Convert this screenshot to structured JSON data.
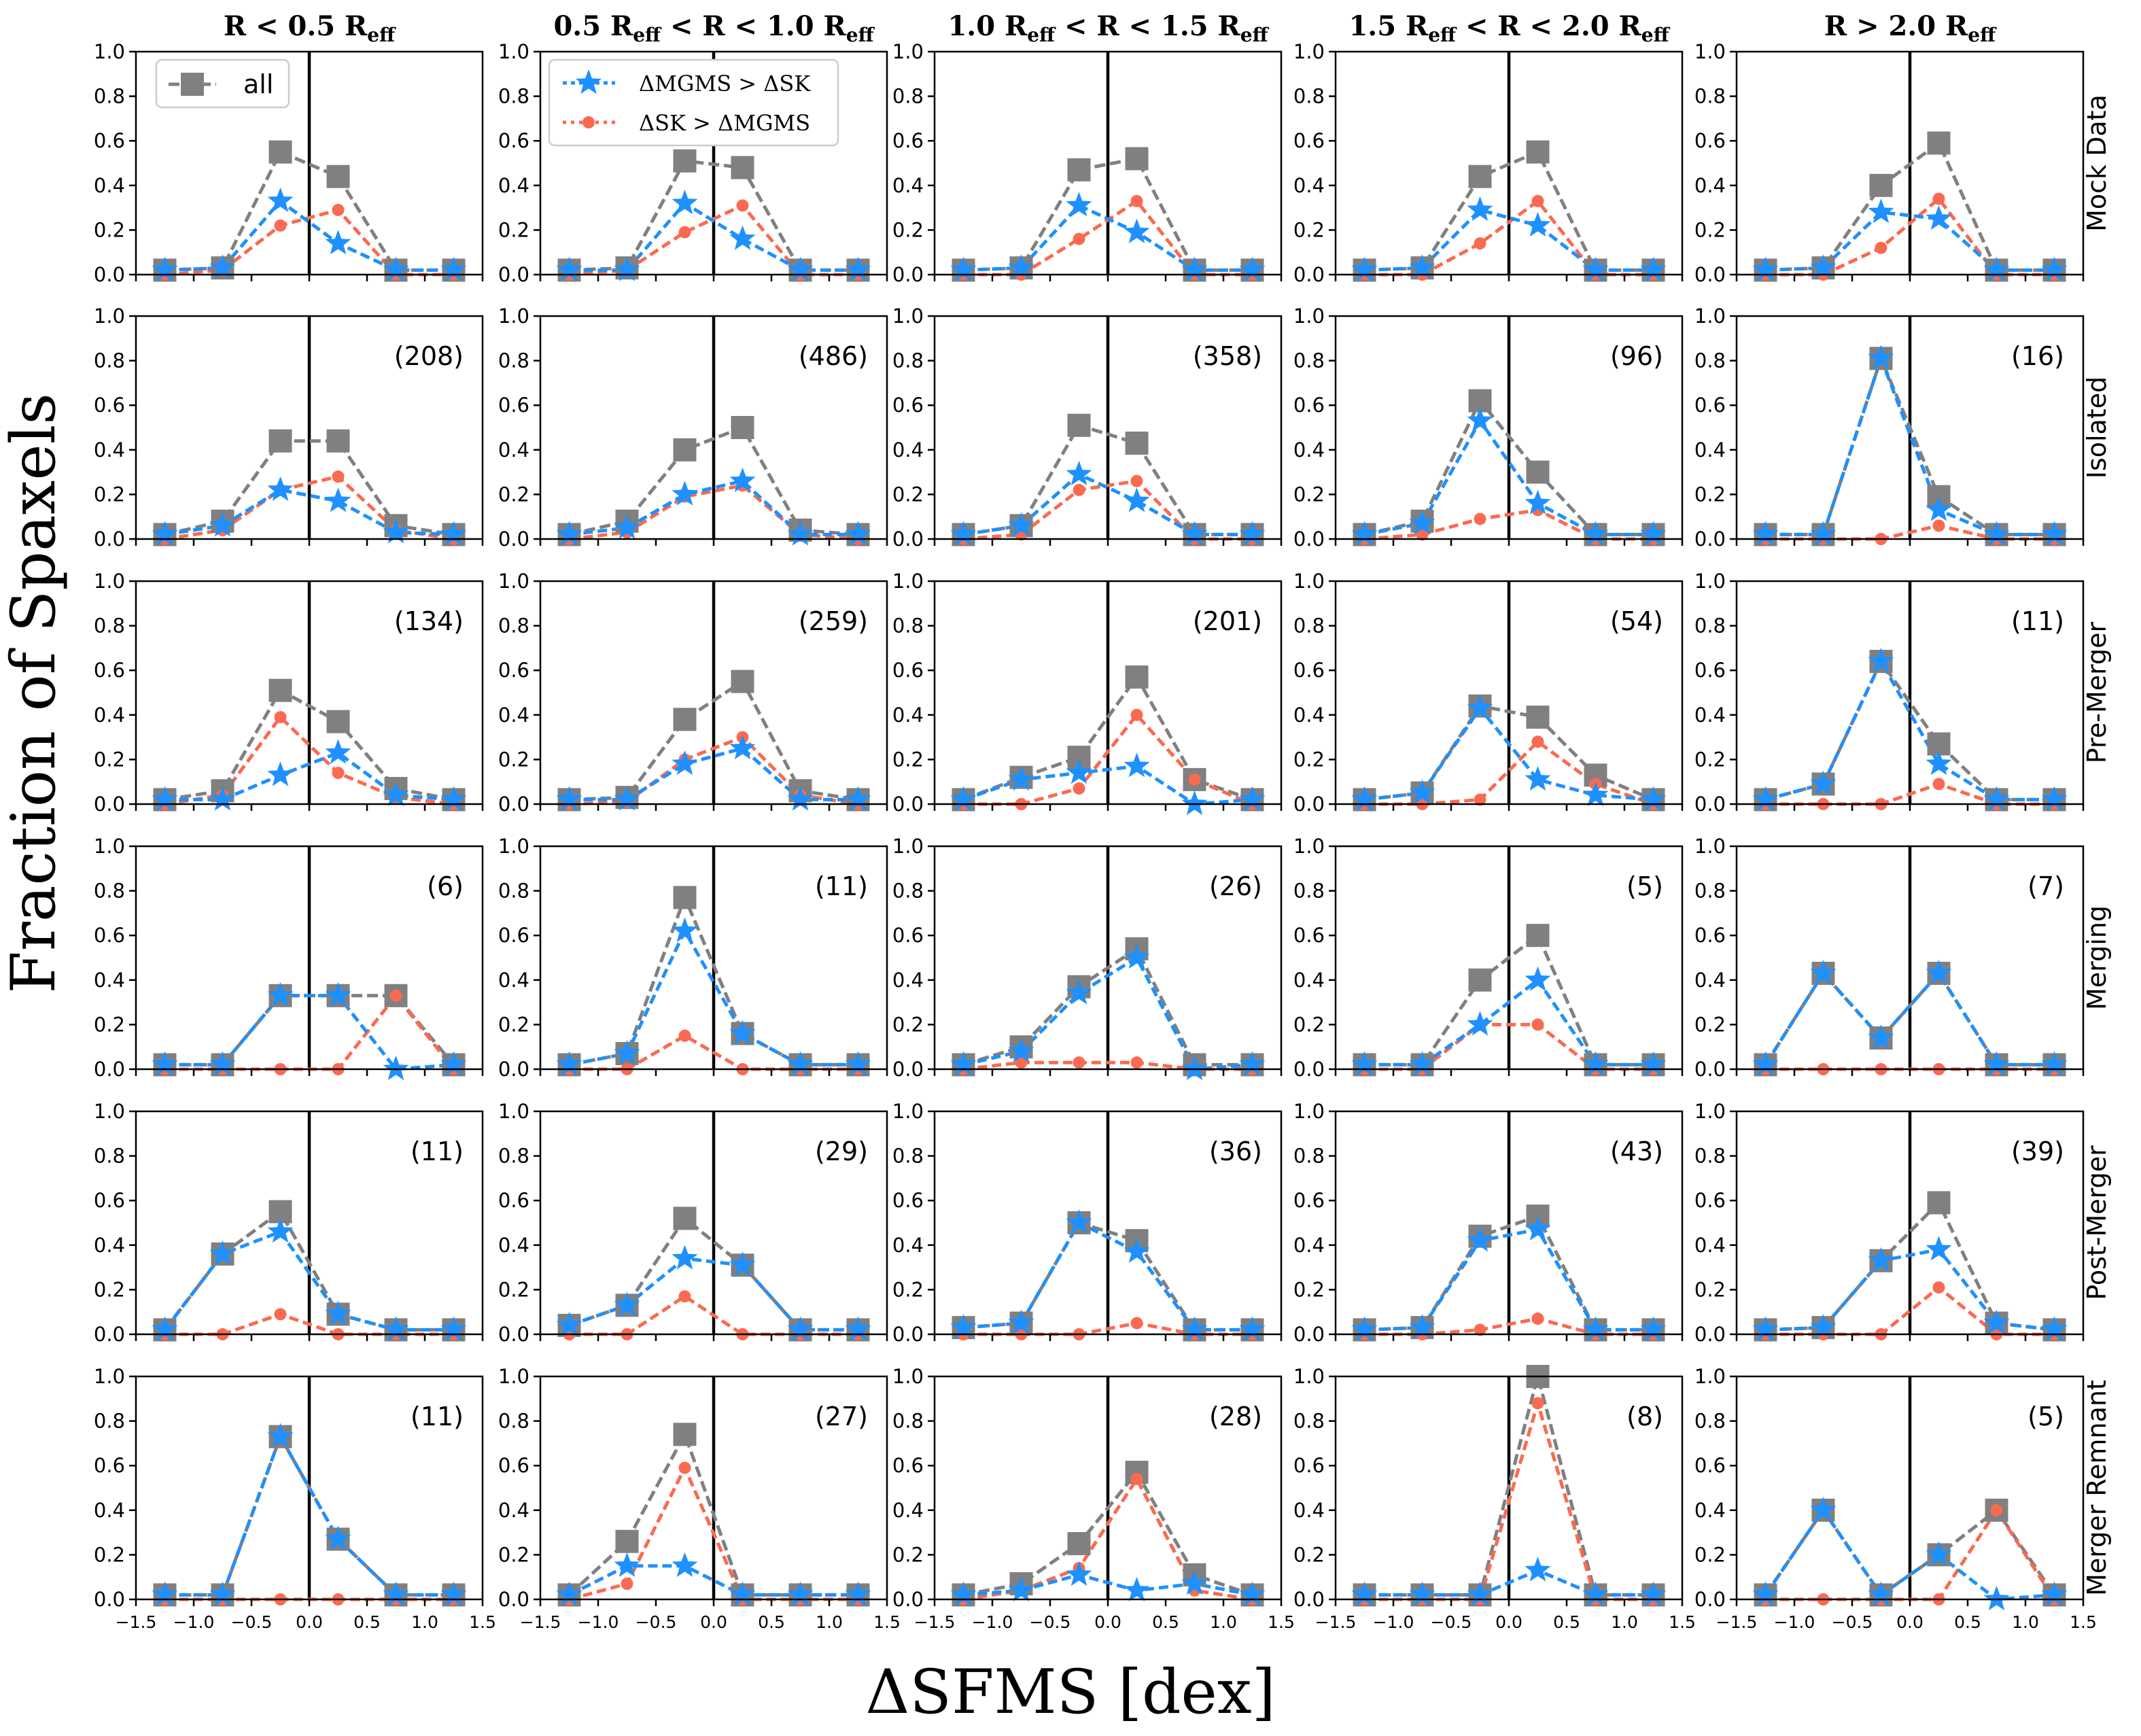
{
  "figure": {
    "ylabel": "Fraction of Spaxels",
    "xlabel": "ΔSFMS [dex]",
    "columns": [
      {
        "pre": "",
        "mid": "R < 0.5 R",
        "sub": "eff",
        "post": ""
      },
      {
        "pre": "0.5 R",
        "presub": "eff",
        "mid": " < R < 1.0 R",
        "sub": "eff",
        "post": ""
      },
      {
        "pre": "1.0 R",
        "presub": "eff",
        "mid": " < R < 1.5 R",
        "sub": "eff",
        "post": ""
      },
      {
        "pre": "1.5 R",
        "presub": "eff",
        "mid": " < R < 2.0 R",
        "sub": "eff",
        "post": ""
      },
      {
        "pre": "",
        "mid": "R > 2.0 R",
        "sub": "eff",
        "post": ""
      }
    ],
    "column_titles": [
      "R < 0.5 R_eff",
      "0.5 R_eff < R < 1.0 R_eff",
      "1.0 R_eff < R < 1.5 R_eff",
      "1.5 R_eff < R < 2.0 R_eff",
      "R > 2.0 R_eff"
    ],
    "rows": [
      "Mock Data",
      "Isolated",
      "Pre-Merger",
      "Merging",
      "Post-Merger",
      "Merger Remnant"
    ],
    "legend_all": "all",
    "legend_mgms": "ΔMGMS > ΔSK",
    "legend_sk": "ΔSK > ΔMGMS",
    "colors": {
      "all": "#808080",
      "mgms": "#1e90ff",
      "sk": "#fa6a50",
      "vline": "#000000"
    }
  },
  "chart_data": {
    "type": "line",
    "x": [
      -1.25,
      -0.75,
      -0.25,
      0.25,
      0.75,
      1.25
    ],
    "xlim": [
      -1.5,
      1.5
    ],
    "ylim": [
      0.0,
      1.0
    ],
    "xticks": [
      "−1.5",
      "−1.0",
      "−0.5",
      "0.0",
      "0.5",
      "1.0",
      "1.5"
    ],
    "yticks": [
      "0.0",
      "0.2",
      "0.4",
      "0.6",
      "0.8",
      "1.0"
    ],
    "vline_x": 0.0,
    "panels": [
      [
        {
          "count": "",
          "all": [
            0.02,
            0.03,
            0.55,
            0.44,
            0.02,
            0.02
          ],
          "mgms": [
            0.02,
            0.03,
            0.33,
            0.14,
            0.02,
            0.02
          ],
          "sk": [
            0.0,
            0.02,
            0.22,
            0.29,
            0.0,
            0.0
          ]
        },
        {
          "count": "",
          "all": [
            0.02,
            0.03,
            0.51,
            0.48,
            0.02,
            0.02
          ],
          "mgms": [
            0.02,
            0.02,
            0.32,
            0.16,
            0.02,
            0.02
          ],
          "sk": [
            0.0,
            0.02,
            0.19,
            0.31,
            0.0,
            0.0
          ]
        },
        {
          "count": "",
          "all": [
            0.02,
            0.03,
            0.47,
            0.52,
            0.02,
            0.02
          ],
          "mgms": [
            0.02,
            0.03,
            0.31,
            0.19,
            0.02,
            0.02
          ],
          "sk": [
            0.0,
            0.0,
            0.16,
            0.33,
            0.0,
            0.0
          ]
        },
        {
          "count": "",
          "all": [
            0.02,
            0.03,
            0.44,
            0.55,
            0.02,
            0.02
          ],
          "mgms": [
            0.02,
            0.03,
            0.29,
            0.22,
            0.02,
            0.02
          ],
          "sk": [
            0.0,
            0.0,
            0.14,
            0.33,
            0.0,
            0.0
          ]
        },
        {
          "count": "",
          "all": [
            0.02,
            0.03,
            0.4,
            0.59,
            0.02,
            0.02
          ],
          "mgms": [
            0.02,
            0.03,
            0.28,
            0.25,
            0.02,
            0.02
          ],
          "sk": [
            0.0,
            0.0,
            0.12,
            0.34,
            0.0,
            0.0
          ]
        }
      ],
      [
        {
          "count": "(208)",
          "all": [
            0.02,
            0.08,
            0.44,
            0.44,
            0.06,
            0.02
          ],
          "mgms": [
            0.02,
            0.06,
            0.22,
            0.17,
            0.03,
            0.02
          ],
          "sk": [
            0.0,
            0.04,
            0.22,
            0.28,
            0.04,
            0.0
          ]
        },
        {
          "count": "(486)",
          "all": [
            0.02,
            0.08,
            0.4,
            0.5,
            0.04,
            0.02
          ],
          "mgms": [
            0.02,
            0.05,
            0.2,
            0.26,
            0.02,
            0.02
          ],
          "sk": [
            0.0,
            0.03,
            0.19,
            0.24,
            0.02,
            0.0
          ]
        },
        {
          "count": "(358)",
          "all": [
            0.02,
            0.06,
            0.51,
            0.43,
            0.02,
            0.02
          ],
          "mgms": [
            0.02,
            0.06,
            0.29,
            0.17,
            0.02,
            0.02
          ],
          "sk": [
            0.0,
            0.02,
            0.22,
            0.26,
            0.0,
            0.0
          ]
        },
        {
          "count": "(96)",
          "all": [
            0.02,
            0.08,
            0.62,
            0.3,
            0.02,
            0.02
          ],
          "mgms": [
            0.02,
            0.07,
            0.53,
            0.16,
            0.02,
            0.02
          ],
          "sk": [
            0.0,
            0.02,
            0.09,
            0.13,
            0.0,
            0.0
          ]
        },
        {
          "count": "(16)",
          "all": [
            0.02,
            0.02,
            0.81,
            0.19,
            0.02,
            0.02
          ],
          "mgms": [
            0.02,
            0.02,
            0.81,
            0.13,
            0.02,
            0.02
          ],
          "sk": [
            0.0,
            0.0,
            0.0,
            0.06,
            0.0,
            0.0
          ]
        }
      ],
      [
        {
          "count": "(134)",
          "all": [
            0.02,
            0.06,
            0.51,
            0.37,
            0.07,
            0.02
          ],
          "mgms": [
            0.02,
            0.02,
            0.13,
            0.23,
            0.04,
            0.02
          ],
          "sk": [
            0.0,
            0.04,
            0.39,
            0.14,
            0.03,
            0.0
          ]
        },
        {
          "count": "(259)",
          "all": [
            0.02,
            0.03,
            0.38,
            0.55,
            0.06,
            0.02
          ],
          "mgms": [
            0.02,
            0.02,
            0.18,
            0.25,
            0.02,
            0.02
          ],
          "sk": [
            0.0,
            0.01,
            0.2,
            0.3,
            0.04,
            0.0
          ]
        },
        {
          "count": "(201)",
          "all": [
            0.02,
            0.12,
            0.21,
            0.57,
            0.11,
            0.02
          ],
          "mgms": [
            0.02,
            0.11,
            0.14,
            0.17,
            0.0,
            0.02
          ],
          "sk": [
            0.0,
            0.0,
            0.07,
            0.4,
            0.11,
            0.0
          ]
        },
        {
          "count": "(54)",
          "all": [
            0.02,
            0.05,
            0.44,
            0.39,
            0.13,
            0.02
          ],
          "mgms": [
            0.02,
            0.05,
            0.43,
            0.11,
            0.04,
            0.02
          ],
          "sk": [
            0.0,
            0.0,
            0.02,
            0.28,
            0.09,
            0.0
          ]
        },
        {
          "count": "(11)",
          "all": [
            0.02,
            0.09,
            0.64,
            0.27,
            0.02,
            0.02
          ],
          "mgms": [
            0.02,
            0.09,
            0.64,
            0.18,
            0.02,
            0.02
          ],
          "sk": [
            0.0,
            0.0,
            0.0,
            0.09,
            0.0,
            0.0
          ]
        }
      ],
      [
        {
          "count": "(6)",
          "all": [
            0.02,
            0.02,
            0.33,
            0.33,
            0.33,
            0.02
          ],
          "mgms": [
            0.02,
            0.02,
            0.33,
            0.33,
            0.0,
            0.02
          ],
          "sk": [
            0.0,
            0.0,
            0.0,
            0.0,
            0.33,
            0.0
          ]
        },
        {
          "count": "(11)",
          "all": [
            0.02,
            0.07,
            0.77,
            0.16,
            0.02,
            0.02
          ],
          "mgms": [
            0.02,
            0.07,
            0.62,
            0.16,
            0.02,
            0.02
          ],
          "sk": [
            0.0,
            0.0,
            0.15,
            0.0,
            0.0,
            0.0
          ]
        },
        {
          "count": "(26)",
          "all": [
            0.02,
            0.1,
            0.37,
            0.54,
            0.02,
            0.02
          ],
          "mgms": [
            0.02,
            0.08,
            0.34,
            0.5,
            0.0,
            0.02
          ],
          "sk": [
            0.0,
            0.03,
            0.03,
            0.03,
            0.0,
            0.0
          ]
        },
        {
          "count": "(5)",
          "all": [
            0.02,
            0.02,
            0.4,
            0.6,
            0.02,
            0.02
          ],
          "mgms": [
            0.02,
            0.02,
            0.2,
            0.4,
            0.02,
            0.02
          ],
          "sk": [
            0.0,
            0.0,
            0.2,
            0.2,
            0.0,
            0.0
          ]
        },
        {
          "count": "(7)",
          "all": [
            0.02,
            0.43,
            0.14,
            0.43,
            0.02,
            0.02
          ],
          "mgms": [
            0.02,
            0.43,
            0.14,
            0.43,
            0.02,
            0.02
          ],
          "sk": [
            0.0,
            0.0,
            0.0,
            0.0,
            0.0,
            0.0
          ]
        }
      ],
      [
        {
          "count": "(11)",
          "all": [
            0.02,
            0.36,
            0.55,
            0.09,
            0.02,
            0.02
          ],
          "mgms": [
            0.02,
            0.36,
            0.46,
            0.09,
            0.02,
            0.02
          ],
          "sk": [
            0.0,
            0.0,
            0.09,
            0.0,
            0.0,
            0.0
          ]
        },
        {
          "count": "(29)",
          "all": [
            0.04,
            0.13,
            0.52,
            0.31,
            0.02,
            0.02
          ],
          "mgms": [
            0.04,
            0.13,
            0.34,
            0.31,
            0.02,
            0.02
          ],
          "sk": [
            0.0,
            0.0,
            0.17,
            0.0,
            0.0,
            0.0
          ]
        },
        {
          "count": "(36)",
          "all": [
            0.03,
            0.05,
            0.5,
            0.42,
            0.02,
            0.02
          ],
          "mgms": [
            0.03,
            0.05,
            0.5,
            0.37,
            0.02,
            0.02
          ],
          "sk": [
            0.0,
            0.0,
            0.0,
            0.05,
            0.0,
            0.0
          ]
        },
        {
          "count": "(43)",
          "all": [
            0.02,
            0.03,
            0.44,
            0.53,
            0.02,
            0.02
          ],
          "mgms": [
            0.02,
            0.03,
            0.42,
            0.47,
            0.02,
            0.02
          ],
          "sk": [
            0.0,
            0.0,
            0.02,
            0.07,
            0.0,
            0.0
          ]
        },
        {
          "count": "(39)",
          "all": [
            0.02,
            0.03,
            0.33,
            0.59,
            0.05,
            0.02
          ],
          "mgms": [
            0.02,
            0.03,
            0.33,
            0.38,
            0.05,
            0.02
          ],
          "sk": [
            0.0,
            0.0,
            0.0,
            0.21,
            0.0,
            0.0
          ]
        }
      ],
      [
        {
          "count": "(11)",
          "all": [
            0.02,
            0.02,
            0.73,
            0.27,
            0.02,
            0.02
          ],
          "mgms": [
            0.02,
            0.02,
            0.73,
            0.27,
            0.02,
            0.02
          ],
          "sk": [
            0.0,
            0.0,
            0.0,
            0.0,
            0.0,
            0.0
          ]
        },
        {
          "count": "(27)",
          "all": [
            0.02,
            0.26,
            0.74,
            0.02,
            0.02,
            0.02
          ],
          "mgms": [
            0.02,
            0.15,
            0.15,
            0.02,
            0.02,
            0.02
          ],
          "sk": [
            0.0,
            0.07,
            0.59,
            0.0,
            0.0,
            0.0
          ]
        },
        {
          "count": "(28)",
          "all": [
            0.02,
            0.07,
            0.25,
            0.57,
            0.11,
            0.02
          ],
          "mgms": [
            0.02,
            0.04,
            0.11,
            0.04,
            0.07,
            0.02
          ],
          "sk": [
            0.0,
            0.04,
            0.14,
            0.54,
            0.04,
            0.0
          ]
        },
        {
          "count": "(8)",
          "all": [
            0.02,
            0.02,
            0.02,
            1.0,
            0.02,
            0.02
          ],
          "mgms": [
            0.02,
            0.02,
            0.02,
            0.13,
            0.02,
            0.02
          ],
          "sk": [
            0.0,
            0.0,
            0.0,
            0.88,
            0.0,
            0.0
          ]
        },
        {
          "count": "(5)",
          "all": [
            0.02,
            0.4,
            0.02,
            0.2,
            0.4,
            0.02
          ],
          "mgms": [
            0.02,
            0.4,
            0.02,
            0.2,
            0.0,
            0.02
          ],
          "sk": [
            0.0,
            0.0,
            0.0,
            0.0,
            0.4,
            0.0
          ]
        }
      ]
    ]
  }
}
